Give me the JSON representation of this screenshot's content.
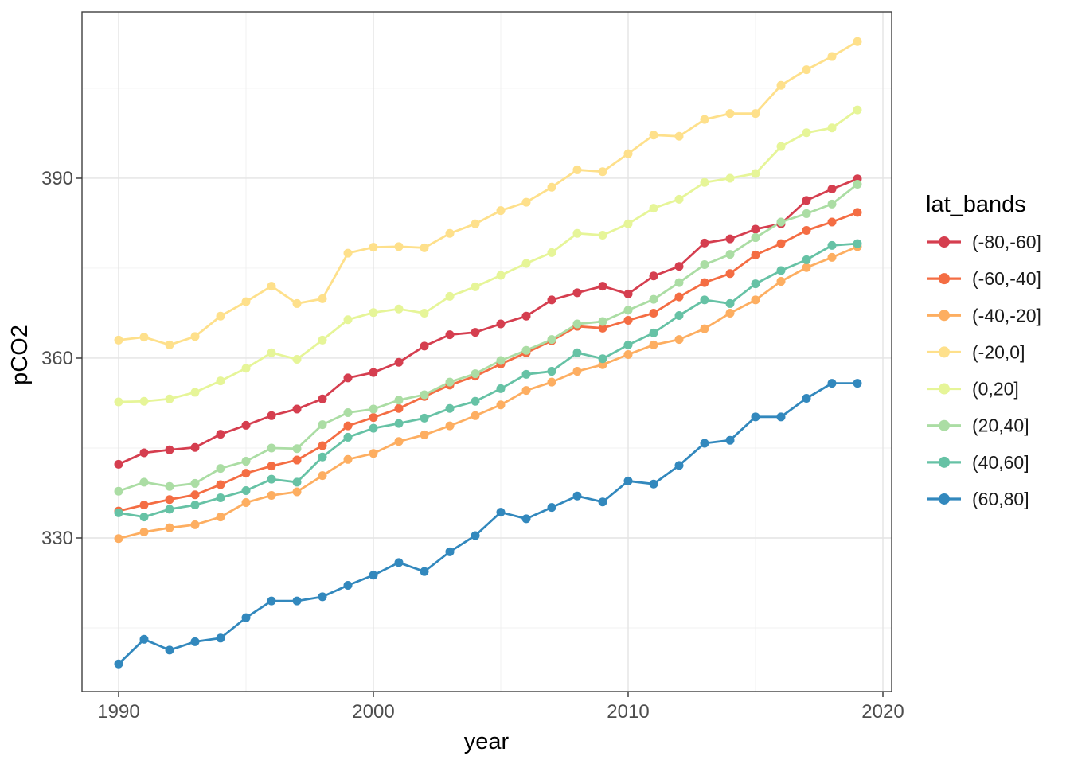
{
  "chart_data": {
    "type": "line",
    "title": "",
    "xlabel": "year",
    "ylabel": "pCO2",
    "legend_title": "lat_bands",
    "legend_position": "right",
    "grid": true,
    "xlim": [
      1988.5625,
      2020.34375
    ],
    "ylim": [
      304.38,
      417.74
    ],
    "x_ticks": [
      1990,
      2000,
      2010,
      2020
    ],
    "y_ticks": [
      330,
      360,
      390
    ],
    "x_minor": [
      1995,
      2005,
      2015
    ],
    "y_minor": [
      315,
      345,
      375,
      405
    ],
    "x": [
      1990,
      1991,
      1992,
      1993,
      1994,
      1995,
      1996,
      1997,
      1998,
      1999,
      2000,
      2001,
      2002,
      2003,
      2004,
      2005,
      2006,
      2007,
      2008,
      2009,
      2010,
      2011,
      2012,
      2013,
      2014,
      2015,
      2016,
      2017,
      2018,
      2019
    ],
    "series": [
      {
        "name": "(-80,-60]",
        "color": "#d53e4f",
        "values": [
          342.3,
          344.2,
          344.7,
          345.1,
          347.3,
          348.8,
          350.4,
          351.5,
          353.2,
          356.7,
          357.6,
          359.3,
          362.0,
          363.9,
          364.3,
          365.7,
          367.0,
          369.7,
          370.9,
          372.0,
          370.7,
          373.7,
          375.3,
          379.2,
          379.9,
          381.5,
          382.4,
          386.3,
          388.2,
          389.9
        ]
      },
      {
        "name": "(-60,-40]",
        "color": "#f46d43",
        "values": [
          334.5,
          335.5,
          336.4,
          337.2,
          338.9,
          340.8,
          342.0,
          343.0,
          345.4,
          348.7,
          350.1,
          351.6,
          353.6,
          355.5,
          357.0,
          359.0,
          360.9,
          362.9,
          365.3,
          365.0,
          366.3,
          367.5,
          370.2,
          372.6,
          374.1,
          377.2,
          379.1,
          381.3,
          382.7,
          384.3
        ]
      },
      {
        "name": "(-40,-20]",
        "color": "#fdae61",
        "values": [
          329.9,
          331.0,
          331.7,
          332.2,
          333.5,
          335.9,
          337.1,
          337.7,
          340.4,
          343.1,
          344.1,
          346.1,
          347.2,
          348.7,
          350.4,
          352.2,
          354.6,
          356.0,
          357.8,
          358.9,
          360.6,
          362.2,
          363.1,
          364.9,
          367.5,
          369.7,
          372.8,
          375.1,
          376.8,
          378.6
        ]
      },
      {
        "name": "(-20,0]",
        "color": "#fee08b",
        "values": [
          363.0,
          363.5,
          362.2,
          363.6,
          367.0,
          369.4,
          372.0,
          369.1,
          369.9,
          377.5,
          378.5,
          378.6,
          378.4,
          380.8,
          382.4,
          384.6,
          386.0,
          388.5,
          391.4,
          391.1,
          394.1,
          397.2,
          397.0,
          399.8,
          400.8,
          400.8,
          405.5,
          408.1,
          410.3,
          412.8
        ]
      },
      {
        "name": "(0,20]",
        "color": "#e6f598",
        "values": [
          352.7,
          352.8,
          353.2,
          354.3,
          356.2,
          358.3,
          360.9,
          359.8,
          363.0,
          366.4,
          367.6,
          368.2,
          367.5,
          370.3,
          371.9,
          373.8,
          375.8,
          377.6,
          380.8,
          380.5,
          382.4,
          385.0,
          386.5,
          389.3,
          390.0,
          390.8,
          395.3,
          397.6,
          398.4,
          401.4
        ]
      },
      {
        "name": "(20,40]",
        "color": "#abdda4",
        "values": [
          337.8,
          339.3,
          338.6,
          339.1,
          341.6,
          342.8,
          345.0,
          344.9,
          348.9,
          350.9,
          351.5,
          353.0,
          353.9,
          356.0,
          357.4,
          359.6,
          361.3,
          363.1,
          365.7,
          366.1,
          368.0,
          369.8,
          372.6,
          375.6,
          377.3,
          380.1,
          382.7,
          384.1,
          385.7,
          389.0
        ]
      },
      {
        "name": "(40,60]",
        "color": "#66c2a5",
        "values": [
          334.2,
          333.5,
          334.8,
          335.5,
          336.7,
          337.9,
          339.8,
          339.3,
          343.5,
          346.8,
          348.3,
          349.1,
          350.0,
          351.6,
          352.8,
          354.9,
          357.3,
          357.8,
          360.9,
          359.9,
          362.2,
          364.2,
          367.1,
          369.7,
          369.1,
          372.4,
          374.6,
          376.4,
          378.8,
          379.1
        ]
      },
      {
        "name": "(60,80]",
        "color": "#3288bd",
        "values": [
          309.0,
          313.1,
          311.3,
          312.7,
          313.3,
          316.7,
          319.5,
          319.5,
          320.2,
          322.1,
          323.8,
          325.9,
          324.4,
          327.7,
          330.4,
          334.3,
          333.2,
          335.1,
          337.0,
          336.0,
          339.5,
          339.0,
          342.1,
          345.8,
          346.3,
          350.2,
          350.2,
          353.3,
          355.8,
          355.8
        ]
      }
    ]
  },
  "style": {
    "grid_major_color": "#e4e4e4",
    "grid_minor_color": "#f0f0f0",
    "panel_border_color": "#404040",
    "tick_color": "#333333",
    "tick_text_color": "#4d4d4d"
  }
}
